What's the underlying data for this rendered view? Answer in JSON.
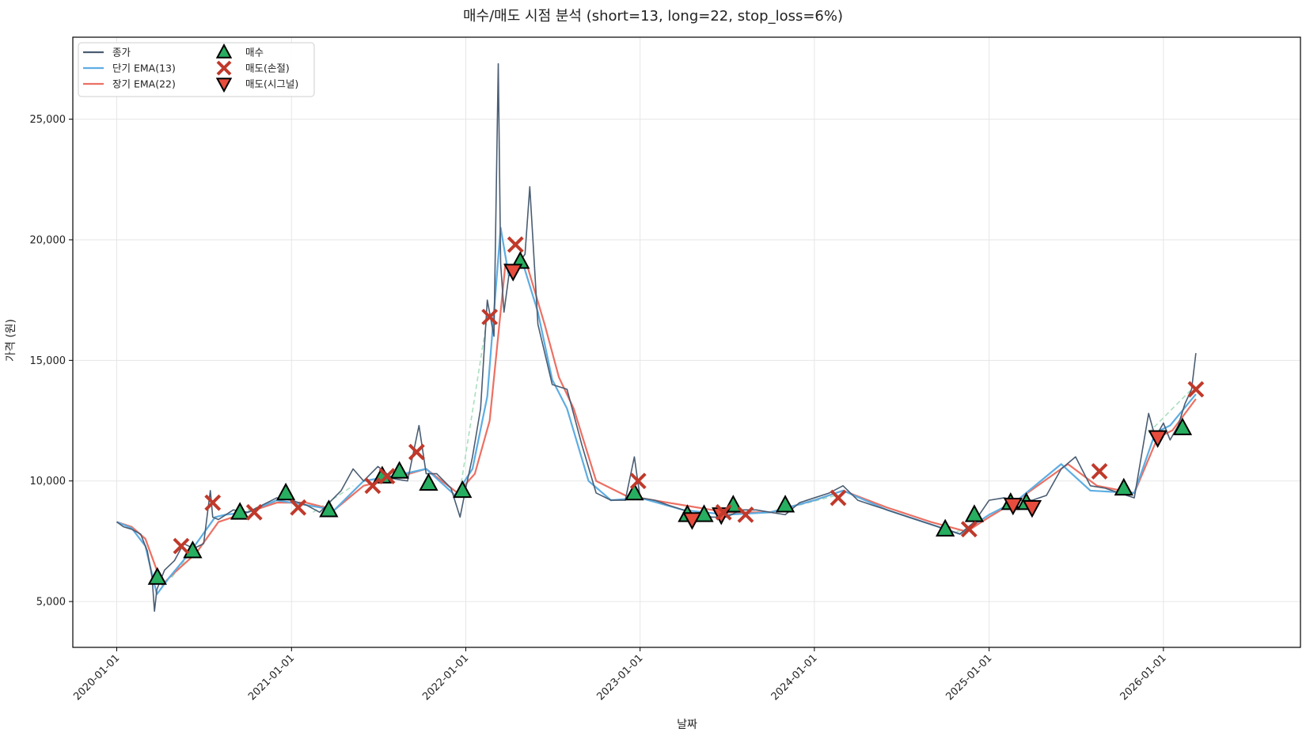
{
  "chart_data": {
    "type": "line",
    "title": "매수/매도 시점 분석 (short=13, long=22, stop_loss=6%)",
    "xlabel": "날짜",
    "ylabel": "가격 (원)",
    "x_ticks": [
      "2020-01-01",
      "2021-01-01",
      "2022-01-01",
      "2023-01-01",
      "2024-01-01",
      "2025-01-01",
      "2026-01-01"
    ],
    "x_range": [
      "2019-10-01",
      "2026-10-15"
    ],
    "y_ticks": [
      5000,
      10000,
      15000,
      20000,
      25000
    ],
    "y_tick_labels": [
      "5,000",
      "10,000",
      "15,000",
      "20,000",
      "25,000"
    ],
    "ylim": [
      3100,
      28400
    ],
    "grid": true,
    "legend_position": "top-left",
    "colors": {
      "close": "#4a5d73",
      "ema_short": "#5dade2",
      "ema_long": "#ec7063",
      "buy": "#27ae60",
      "sell_stop": "#c0392b",
      "sell_signal": "#e74c3c",
      "holding": "#a9dfbf"
    },
    "legend": [
      {
        "label": "종가",
        "kind": "line",
        "color": "#4a5d73"
      },
      {
        "label": "단기 EMA(13)",
        "kind": "line",
        "color": "#5dade2"
      },
      {
        "label": "장기 EMA(22)",
        "kind": "line",
        "color": "#ec7063"
      },
      {
        "label": "매수",
        "kind": "triangle-up",
        "color": "#27ae60"
      },
      {
        "label": "매도(손절)",
        "kind": "x",
        "color": "#c0392b"
      },
      {
        "label": "매도(시그널)",
        "kind": "triangle-down",
        "color": "#e74c3c"
      }
    ],
    "series": [
      {
        "name": "종가",
        "key": "close",
        "x": [
          "2020-01-01",
          "2020-01-15",
          "2020-02-01",
          "2020-02-20",
          "2020-03-05",
          "2020-03-15",
          "2020-03-20",
          "2020-03-25",
          "2020-04-10",
          "2020-05-01",
          "2020-05-20",
          "2020-06-10",
          "2020-07-01",
          "2020-07-15",
          "2020-07-20",
          "2020-08-01",
          "2020-09-01",
          "2020-10-01",
          "2020-11-01",
          "2020-12-01",
          "2021-01-01",
          "2021-02-01",
          "2021-03-01",
          "2021-04-15",
          "2021-05-10",
          "2021-06-01",
          "2021-07-01",
          "2021-08-01",
          "2021-09-01",
          "2021-09-25",
          "2021-10-10",
          "2021-11-01",
          "2021-12-01",
          "2021-12-20",
          "2022-01-01",
          "2022-01-15",
          "2022-02-01",
          "2022-02-15",
          "2022-03-01",
          "2022-03-10",
          "2022-03-15",
          "2022-03-22",
          "2022-04-01",
          "2022-04-20",
          "2022-05-05",
          "2022-05-15",
          "2022-06-01",
          "2022-07-01",
          "2022-08-01",
          "2022-09-01",
          "2022-10-01",
          "2022-11-01",
          "2022-12-01",
          "2022-12-20",
          "2023-01-01",
          "2023-02-01",
          "2023-03-01",
          "2023-04-01",
          "2023-05-01",
          "2023-06-01",
          "2023-07-01",
          "2023-08-01",
          "2023-09-01",
          "2023-10-01",
          "2023-11-01",
          "2023-12-01",
          "2024-01-01",
          "2024-02-01",
          "2024-03-01",
          "2024-04-01",
          "2024-05-01",
          "2024-06-01",
          "2024-07-01",
          "2024-08-01",
          "2024-09-01",
          "2024-10-01",
          "2024-11-01",
          "2024-12-01",
          "2025-01-01",
          "2025-02-01",
          "2025-03-01",
          "2025-04-01",
          "2025-05-01",
          "2025-06-01",
          "2025-07-01",
          "2025-08-01",
          "2025-09-01",
          "2025-10-01",
          "2025-11-01",
          "2025-12-01",
          "2025-12-15",
          "2026-01-01",
          "2026-01-15",
          "2026-02-01",
          "2026-02-15",
          "2026-03-01",
          "2026-03-10"
        ],
        "values": [
          8300,
          8100,
          8000,
          7800,
          7100,
          6000,
          4600,
          5500,
          6300,
          6700,
          7400,
          7200,
          7400,
          9600,
          8500,
          8400,
          8800,
          8700,
          9000,
          9300,
          9200,
          9000,
          8700,
          9600,
          10500,
          10000,
          10600,
          10100,
          10000,
          12300,
          10300,
          10300,
          9700,
          8500,
          9700,
          11000,
          13000,
          17500,
          16000,
          27300,
          19000,
          17000,
          18500,
          19000,
          19400,
          22200,
          16500,
          14000,
          13800,
          11500,
          9500,
          9200,
          9200,
          11000,
          9300,
          9200,
          9000,
          8800,
          8600,
          8500,
          8500,
          8800,
          8800,
          8700,
          8600,
          9100,
          9300,
          9500,
          9800,
          9200,
          9000,
          8800,
          8600,
          8400,
          8200,
          8000,
          7800,
          8300,
          9200,
          9300,
          9200,
          9200,
          9400,
          10500,
          11000,
          9800,
          9700,
          9500,
          9300,
          12800,
          11800,
          12400,
          11700,
          12300,
          13200,
          13800,
          15300
        ]
      },
      {
        "name": "단기 EMA(13)",
        "key": "ema_short",
        "x": [
          "2020-01-01",
          "2020-02-01",
          "2020-03-01",
          "2020-03-25",
          "2020-04-20",
          "2020-06-01",
          "2020-07-25",
          "2020-08-15",
          "2020-10-01",
          "2020-12-01",
          "2021-02-01",
          "2021-04-01",
          "2021-06-01",
          "2021-08-01",
          "2021-10-10",
          "2021-12-10",
          "2022-01-15",
          "2022-02-15",
          "2022-03-15",
          "2022-04-01",
          "2022-05-01",
          "2022-06-01",
          "2022-07-01",
          "2022-08-01",
          "2022-09-15",
          "2022-11-01",
          "2023-01-01",
          "2023-04-01",
          "2023-07-01",
          "2023-10-01",
          "2024-01-01",
          "2024-03-01",
          "2024-06-01",
          "2024-09-01",
          "2024-11-01",
          "2025-01-01",
          "2025-03-01",
          "2025-06-01",
          "2025-08-01",
          "2025-11-01",
          "2025-12-15",
          "2026-01-15",
          "2026-03-10"
        ],
        "values": [
          8300,
          8050,
          7300,
          5300,
          6000,
          7000,
          8500,
          8600,
          8700,
          9200,
          9000,
          8800,
          10000,
          10200,
          10500,
          9400,
          10500,
          13500,
          20500,
          18500,
          19000,
          17000,
          14200,
          13000,
          10000,
          9200,
          9300,
          8800,
          8600,
          8700,
          9200,
          9600,
          8800,
          8200,
          7800,
          8600,
          9200,
          10700,
          9600,
          9500,
          12000,
          12300,
          13600
        ]
      },
      {
        "name": "장기 EMA(22)",
        "key": "ema_long",
        "x": [
          "2020-01-01",
          "2020-02-01",
          "2020-03-01",
          "2020-04-05",
          "2020-05-01",
          "2020-06-15",
          "2020-08-01",
          "2020-10-01",
          "2020-12-01",
          "2021-02-01",
          "2021-04-01",
          "2021-06-01",
          "2021-08-01",
          "2021-10-10",
          "2021-12-15",
          "2022-01-20",
          "2022-02-20",
          "2022-03-25",
          "2022-04-15",
          "2022-05-10",
          "2022-06-15",
          "2022-07-15",
          "2022-08-15",
          "2022-10-01",
          "2022-12-01",
          "2023-03-01",
          "2023-07-01",
          "2023-10-01",
          "2024-01-01",
          "2024-03-01",
          "2024-06-01",
          "2024-09-01",
          "2024-11-15",
          "2025-01-01",
          "2025-03-01",
          "2025-06-15",
          "2025-08-15",
          "2025-11-01",
          "2025-12-20",
          "2026-01-20",
          "2026-03-10"
        ],
        "values": [
          8300,
          8100,
          7600,
          5700,
          6200,
          7000,
          8300,
          8700,
          9100,
          9100,
          8800,
          9800,
          10100,
          10500,
          9500,
          10300,
          12500,
          19000,
          18800,
          18900,
          16500,
          14300,
          13000,
          10000,
          9400,
          9100,
          8700,
          8700,
          9200,
          9600,
          8900,
          8300,
          7900,
          8500,
          9200,
          10700,
          9800,
          9500,
          11800,
          12100,
          13400
        ]
      }
    ],
    "holding_segments": [
      {
        "x": [
          "2020-04-25",
          "2020-06-15"
        ],
        "values": [
          6000,
          7300
        ]
      },
      {
        "x": [
          "2020-10-01",
          "2020-12-15"
        ],
        "values": [
          8800,
          9200
        ]
      },
      {
        "x": [
          "2021-02-15",
          "2021-05-10"
        ],
        "values": [
          8700,
          9800
        ]
      },
      {
        "x": [
          "2021-12-20",
          "2022-02-15"
        ],
        "values": [
          9600,
          16800
        ]
      },
      {
        "x": [
          "2023-12-01",
          "2024-02-15"
        ],
        "values": [
          9000,
          9400
        ]
      },
      {
        "x": [
          "2024-10-25",
          "2024-12-01"
        ],
        "values": [
          7900,
          8100
        ]
      },
      {
        "x": [
          "2025-12-01",
          "2026-03-01"
        ],
        "values": [
          12000,
          13800
        ]
      }
    ],
    "buy": {
      "name": "매수",
      "x": [
        "2020-03-26",
        "2020-06-08",
        "2020-09-15",
        "2020-12-20",
        "2021-03-20",
        "2021-07-10",
        "2021-08-15",
        "2021-10-15",
        "2021-12-25",
        "2022-04-25",
        "2022-12-20",
        "2023-04-10",
        "2023-05-15",
        "2023-07-15",
        "2023-11-01",
        "2024-10-01",
        "2024-12-01",
        "2025-02-15",
        "2025-03-20",
        "2025-10-10",
        "2026-02-10"
      ],
      "values": [
        6000,
        7100,
        8700,
        9500,
        8800,
        10200,
        10400,
        9900,
        9600,
        19100,
        9500,
        8600,
        8600,
        9000,
        9000,
        8000,
        8600,
        9100,
        9100,
        9700,
        12200
      ]
    },
    "sell_stop": {
      "name": "매도(손절)",
      "x": [
        "2020-05-15",
        "2020-07-20",
        "2020-10-15",
        "2021-01-15",
        "2021-06-20",
        "2021-07-20",
        "2021-09-20",
        "2022-02-20",
        "2022-04-15",
        "2022-12-28",
        "2023-06-25",
        "2023-08-10",
        "2024-02-20",
        "2024-11-20",
        "2025-08-20",
        "2026-03-10"
      ],
      "values": [
        7300,
        9100,
        8700,
        8900,
        9800,
        10200,
        11200,
        16800,
        19800,
        10000,
        8700,
        8600,
        9300,
        8000,
        10400,
        13800
      ]
    },
    "sell_signal": {
      "name": "매도(시그널)",
      "x": [
        "2022-04-10",
        "2023-04-20",
        "2023-06-20",
        "2025-02-20",
        "2025-04-01",
        "2025-12-20"
      ],
      "values": [
        18700,
        8400,
        8600,
        9000,
        8900,
        11800
      ]
    }
  }
}
